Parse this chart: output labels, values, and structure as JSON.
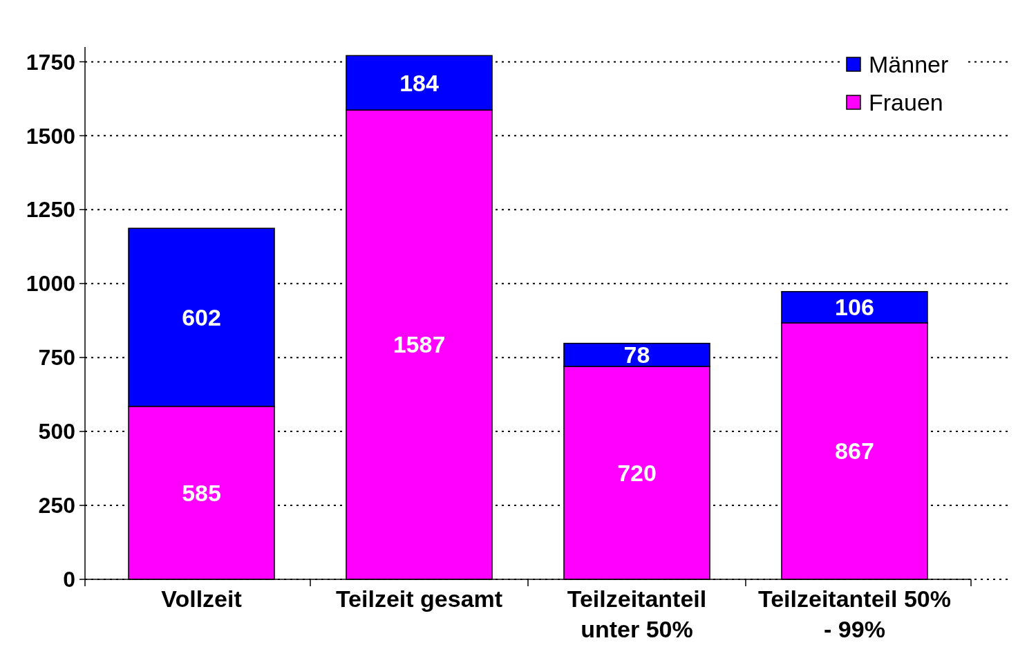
{
  "chart_data": {
    "type": "bar",
    "stacked": true,
    "categories": [
      "Vollzeit",
      "Teilzeit gesamt",
      "Teilzeitanteil unter 50%",
      "Teilzeitanteil 50% - 99%"
    ],
    "series": [
      {
        "name": "Frauen",
        "color": "#ff00ff",
        "values": [
          585,
          1587,
          720,
          867
        ]
      },
      {
        "name": "Männer",
        "color": "#0000ff",
        "values": [
          602,
          184,
          78,
          106
        ]
      }
    ],
    "ylim": [
      0,
      1800
    ],
    "yticks": [
      0,
      250,
      500,
      750,
      1000,
      1250,
      1500,
      1750
    ],
    "grid": "y",
    "legend": "top right",
    "data_labels": true
  }
}
